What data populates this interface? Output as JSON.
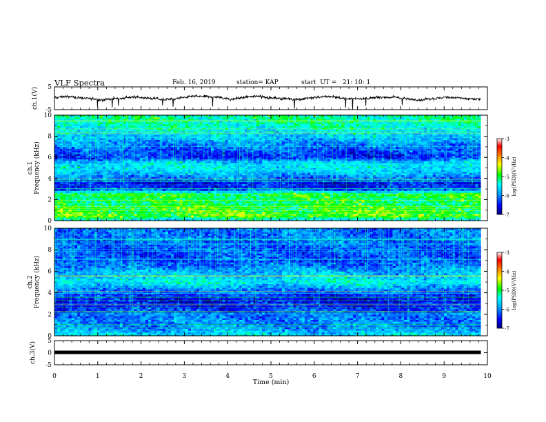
{
  "header": {
    "title": "VLF Spectra",
    "date": "Feb. 16, 2019",
    "station": "station= KAP",
    "start": "start  UT =   21: 10: 1"
  },
  "chart_data": [
    {
      "type": "line",
      "panel": "ch1-waveform",
      "ylabel": "ch.1(V)",
      "ylim": [
        -5,
        5
      ],
      "yticks": [
        "5",
        "-5"
      ],
      "xlim": [
        0,
        10
      ],
      "color": "#000000",
      "baseline": 0.2,
      "noise_amplitude": 1.1,
      "t_end": 9.85
    },
    {
      "type": "heatmap",
      "panel": "ch1-spectrogram",
      "ylabel_top": "ch.1",
      "ylabel": "Frequency (kHz)",
      "ylim": [
        0,
        10
      ],
      "yticks": [
        "0",
        "2",
        "4",
        "6",
        "8",
        "10"
      ],
      "xlim": [
        0,
        10
      ],
      "t_end": 9.85,
      "colorbar": {
        "range": [
          -7,
          -3
        ],
        "ticks": [
          "-3",
          "-4",
          "-5",
          "-6",
          "-7"
        ],
        "label": "log(PSD)(V²/Hz)",
        "colors": [
          "#000080",
          "#0000ff",
          "#00a0ff",
          "#00ffff",
          "#00ff00",
          "#ffff00",
          "#ff8000",
          "#ff0000",
          "#ffffff"
        ]
      },
      "profile_khz": [
        0,
        0.5,
        1.0,
        1.5,
        2.0,
        2.5,
        3.0,
        3.5,
        4.0,
        4.5,
        5.0,
        5.5,
        6.0,
        6.5,
        7.0,
        8.0,
        9.0,
        10.0
      ],
      "profile_level": [
        -5.6,
        -4.7,
        -4.9,
        -5.0,
        -5.1,
        -4.9,
        -6.3,
        -6.6,
        -6.1,
        -5.8,
        -5.5,
        -5.6,
        -6.4,
        -6.3,
        -6.1,
        -5.7,
        -5.3,
        -5.2
      ]
    },
    {
      "type": "heatmap",
      "panel": "ch2-spectrogram",
      "ylabel_top": "ch.2",
      "ylabel": "Frequency (kHz)",
      "ylim": [
        0,
        10
      ],
      "yticks": [
        "0",
        "2",
        "4",
        "6",
        "8",
        "10"
      ],
      "xlim": [
        0,
        10
      ],
      "t_end": 9.85,
      "colorbar": {
        "range": [
          -7,
          -3
        ],
        "ticks": [
          "-3",
          "-4",
          "-5",
          "-6",
          "-7"
        ],
        "label": "log(PSD)(V²/Hz)",
        "colors": [
          "#000080",
          "#0000ff",
          "#00a0ff",
          "#00ffff",
          "#00ff00",
          "#ffff00",
          "#ff8000",
          "#ff0000",
          "#ffffff"
        ]
      },
      "profile_khz": [
        0,
        0.5,
        1.0,
        1.5,
        2.0,
        2.5,
        3.0,
        3.5,
        4.0,
        4.5,
        5.0,
        5.5,
        6.0,
        6.5,
        7.0,
        8.0,
        9.0,
        10.0
      ],
      "profile_level": [
        -5.5,
        -5.8,
        -6.0,
        -6.0,
        -6.1,
        -6.3,
        -6.6,
        -6.5,
        -6.3,
        -5.9,
        -5.4,
        -5.7,
        -5.8,
        -6.1,
        -6.3,
        -6.2,
        -6.1,
        -6.1
      ]
    },
    {
      "type": "line",
      "panel": "ch3-waveform",
      "ylabel": "ch.3(V)",
      "ylim": [
        -5,
        5
      ],
      "yticks": [
        "5",
        "0",
        "-5"
      ],
      "xlim": [
        0,
        10
      ],
      "xlabel": "Time (min)",
      "xticks": [
        "0",
        "1",
        "2",
        "3",
        "4",
        "5",
        "6",
        "7",
        "8",
        "9",
        "10"
      ],
      "value": 0,
      "t_end": 9.85,
      "color": "#000000"
    }
  ]
}
